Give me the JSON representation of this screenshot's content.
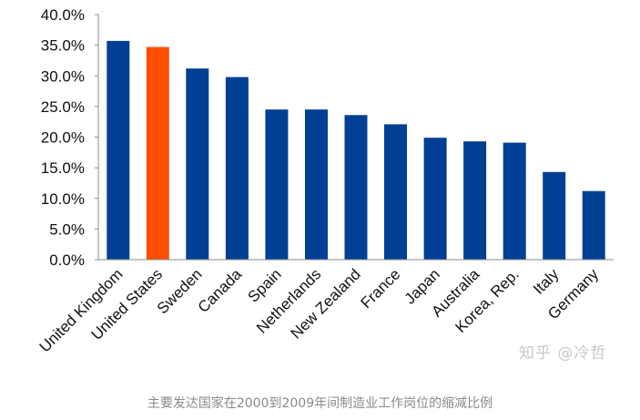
{
  "chart_data": {
    "type": "bar",
    "categories": [
      "United Kingdom",
      "United States",
      "Sweden",
      "Canada",
      "Spain",
      "Netherlands",
      "New Zealand",
      "France",
      "Japan",
      "Australia",
      "Korea, Rep.",
      "Italy",
      "Germany"
    ],
    "values": [
      35.7,
      34.7,
      31.2,
      29.8,
      24.5,
      24.5,
      23.6,
      22.1,
      19.9,
      19.3,
      19.1,
      14.3,
      11.2
    ],
    "ylim": [
      0,
      40
    ],
    "yticks": [
      0,
      5,
      10,
      15,
      20,
      25,
      30,
      35,
      40
    ],
    "ytick_labels": [
      "0.0%",
      "5.0%",
      "10.0%",
      "15.0%",
      "20.0%",
      "25.0%",
      "30.0%",
      "35.0%",
      "40.0%"
    ],
    "grid": false,
    "highlight_category": "United States",
    "colors": {
      "bar": "#003f94",
      "highlight": "#ff4d00",
      "axis": "#8c8c8c"
    }
  },
  "watermark": "知乎 @冷哲",
  "caption": "主要发达国家在2000到2009年间制造业工作岗位的缩减比例"
}
